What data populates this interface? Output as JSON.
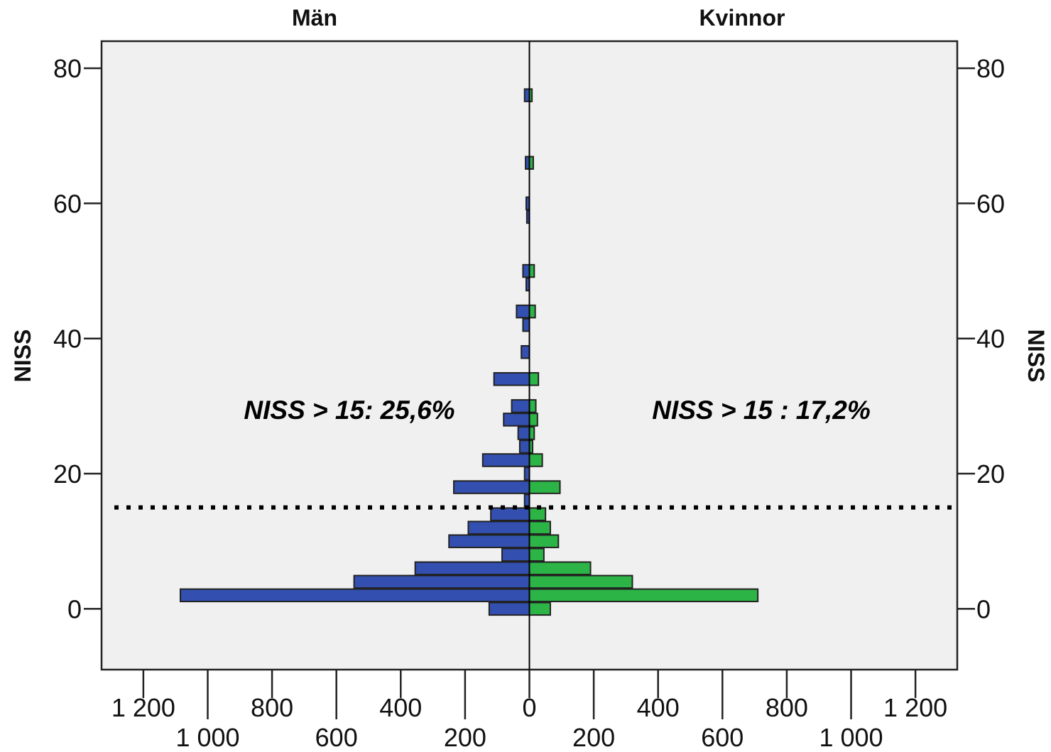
{
  "chart_data": {
    "type": "bar",
    "orientation": "horizontal",
    "layout": "population-pyramid",
    "panel_titles": {
      "left": "Män",
      "right": "Kvinnor"
    },
    "ylabel_left": "NISS",
    "ylabel_right": "NISS",
    "ylim": [
      -9,
      84
    ],
    "yticks": [
      0,
      20,
      40,
      60,
      80
    ],
    "xlim": [
      -1330,
      1330
    ],
    "xticks_top": [
      {
        "value": -1200,
        "label": "1 200"
      },
      {
        "value": -800,
        "label": "800"
      },
      {
        "value": -400,
        "label": "400"
      },
      {
        "value": 0,
        "label": "0"
      },
      {
        "value": 400,
        "label": "400"
      },
      {
        "value": 800,
        "label": "800"
      },
      {
        "value": 1200,
        "label": "1 200"
      }
    ],
    "xticks_bottom": [
      {
        "value": -1000,
        "label": "1 000"
      },
      {
        "value": -600,
        "label": "600"
      },
      {
        "value": -200,
        "label": "200"
      },
      {
        "value": 200,
        "label": "200"
      },
      {
        "value": 600,
        "label": "600"
      },
      {
        "value": 1000,
        "label": "1 000"
      }
    ],
    "bin_width": 2,
    "series": [
      {
        "name": "Män",
        "side": "left",
        "color": "#3350b0",
        "bins": [
          {
            "y": 0,
            "value": 125
          },
          {
            "y": 2,
            "value": 1085
          },
          {
            "y": 4,
            "value": 545
          },
          {
            "y": 6,
            "value": 355
          },
          {
            "y": 8,
            "value": 85
          },
          {
            "y": 10,
            "value": 250
          },
          {
            "y": 12,
            "value": 190
          },
          {
            "y": 14,
            "value": 120
          },
          {
            "y": 16,
            "value": 15
          },
          {
            "y": 18,
            "value": 235
          },
          {
            "y": 20,
            "value": 15
          },
          {
            "y": 22,
            "value": 145
          },
          {
            "y": 24,
            "value": 30
          },
          {
            "y": 26,
            "value": 35
          },
          {
            "y": 28,
            "value": 80
          },
          {
            "y": 30,
            "value": 55
          },
          {
            "y": 34,
            "value": 110
          },
          {
            "y": 38,
            "value": 25
          },
          {
            "y": 42,
            "value": 20
          },
          {
            "y": 44,
            "value": 40
          },
          {
            "y": 48,
            "value": 10
          },
          {
            "y": 50,
            "value": 20
          },
          {
            "y": 58,
            "value": 8
          },
          {
            "y": 60,
            "value": 10
          },
          {
            "y": 66,
            "value": 12
          },
          {
            "y": 76,
            "value": 15
          }
        ]
      },
      {
        "name": "Kvinnor",
        "side": "right",
        "color": "#2db446",
        "bins": [
          {
            "y": 0,
            "value": 65
          },
          {
            "y": 2,
            "value": 710
          },
          {
            "y": 4,
            "value": 320
          },
          {
            "y": 6,
            "value": 190
          },
          {
            "y": 8,
            "value": 45
          },
          {
            "y": 10,
            "value": 90
          },
          {
            "y": 12,
            "value": 65
          },
          {
            "y": 14,
            "value": 50
          },
          {
            "y": 18,
            "value": 95
          },
          {
            "y": 22,
            "value": 40
          },
          {
            "y": 24,
            "value": 10
          },
          {
            "y": 26,
            "value": 15
          },
          {
            "y": 28,
            "value": 25
          },
          {
            "y": 30,
            "value": 20
          },
          {
            "y": 34,
            "value": 28
          },
          {
            "y": 44,
            "value": 18
          },
          {
            "y": 50,
            "value": 15
          },
          {
            "y": 66,
            "value": 12
          },
          {
            "y": 76,
            "value": 8
          }
        ]
      }
    ],
    "reference_line": {
      "y": 15,
      "style": "dotted"
    },
    "annotations": [
      {
        "side": "left",
        "text": "NISS > 15: 25,6%"
      },
      {
        "side": "right",
        "text": "NISS > 15 : 17,2%"
      }
    ],
    "grid": false,
    "colors": {
      "plot_background": "#f0f0f0",
      "male": "#3350b0",
      "female": "#2db446"
    }
  }
}
